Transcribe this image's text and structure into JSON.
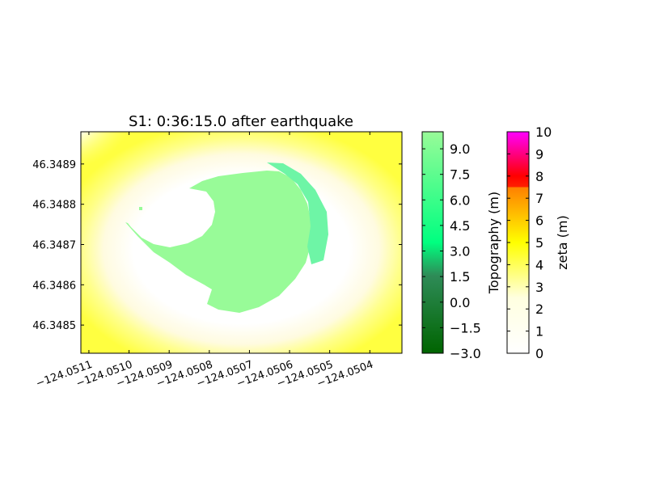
{
  "chart_data": {
    "type": "heatmap",
    "title": "S1: 0:36:15.0 after earthquake",
    "xlabel": "",
    "ylabel": "",
    "x_range": [
      -124.05112,
      -124.05032
    ],
    "y_range": [
      46.34843,
      46.34898
    ],
    "x_ticks": [
      -124.0511,
      -124.051,
      -124.0509,
      -124.0508,
      -124.0507,
      -124.0506,
      -124.0505,
      -124.0504
    ],
    "x_tick_labels": [
      "−124.0511",
      "−124.0510",
      "−124.0509",
      "−124.0508",
      "−124.0507",
      "−124.0506",
      "−124.0505",
      "−124.0504"
    ],
    "y_ticks": [
      46.3485,
      46.3486,
      46.3487,
      46.3488,
      46.3489
    ],
    "y_tick_labels": [
      "46.3485",
      "46.3486",
      "46.3487",
      "46.3488",
      "46.3489"
    ],
    "fields": [
      {
        "name": "topography",
        "description": "dry land cell colour (m)",
        "colorbar_label": "Topography (m)",
        "range": [
          -3.0,
          10.0
        ],
        "ticks": [
          -3.0,
          -1.5,
          0.0,
          1.5,
          3.0,
          4.5,
          6.0,
          7.5,
          9.0
        ],
        "tick_labels": [
          "−3.0",
          "−1.5",
          "0.0",
          "1.5",
          "3.0",
          "4.5",
          "6.0",
          "7.5",
          "9.0"
        ],
        "colors": [
          "#006400",
          "#2e8b57",
          "#00ff80",
          "#98fb98"
        ]
      },
      {
        "name": "zeta",
        "colorbar_label": "zeta (m)",
        "range": [
          0,
          10
        ],
        "ticks": [
          0,
          1,
          2,
          3,
          4,
          5,
          6,
          7,
          8,
          9,
          10
        ],
        "tick_labels": [
          "0",
          "1",
          "2",
          "3",
          "4",
          "5",
          "6",
          "7",
          "8",
          "9",
          "10"
        ],
        "colors": [
          "#ffffff",
          "#ffff00",
          "#ff0000",
          "#ff00ff"
        ]
      }
    ],
    "grid": false,
    "legend": "colorbars right"
  }
}
